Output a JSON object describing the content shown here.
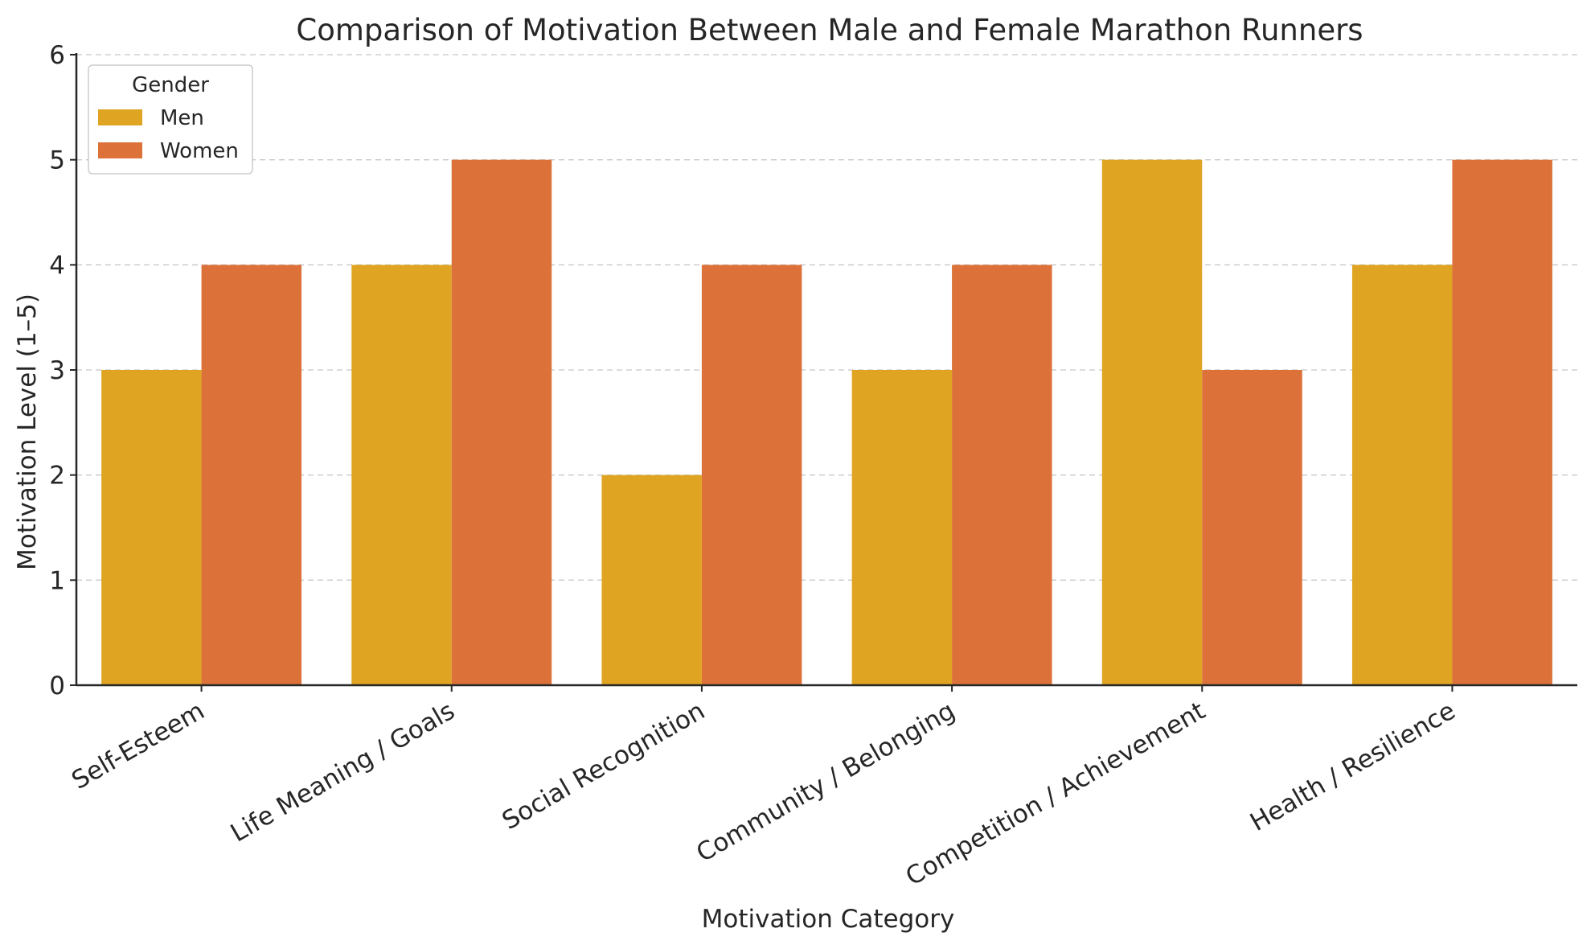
{
  "chart_data": {
    "type": "bar",
    "title": "Comparison of Motivation Between Male and Female Marathon Runners",
    "xlabel": "Motivation Category",
    "ylabel": "Motivation Level (1–5)",
    "ylim": [
      0,
      6
    ],
    "yticks": [
      0,
      1,
      2,
      3,
      4,
      5,
      6
    ],
    "grid": true,
    "categories": [
      "Self-Esteem",
      "Life Meaning / Goals",
      "Social Recognition",
      "Community / Belonging",
      "Competition / Achievement",
      "Health / Resilience"
    ],
    "series": [
      {
        "name": "Men",
        "color": "#e0a423",
        "values": [
          3,
          4,
          2,
          3,
          5,
          4
        ]
      },
      {
        "name": "Women",
        "color": "#dc723a",
        "values": [
          4,
          5,
          4,
          4,
          3,
          5
        ]
      }
    ],
    "legend": {
      "title": "Gender",
      "position": "top-left"
    }
  }
}
